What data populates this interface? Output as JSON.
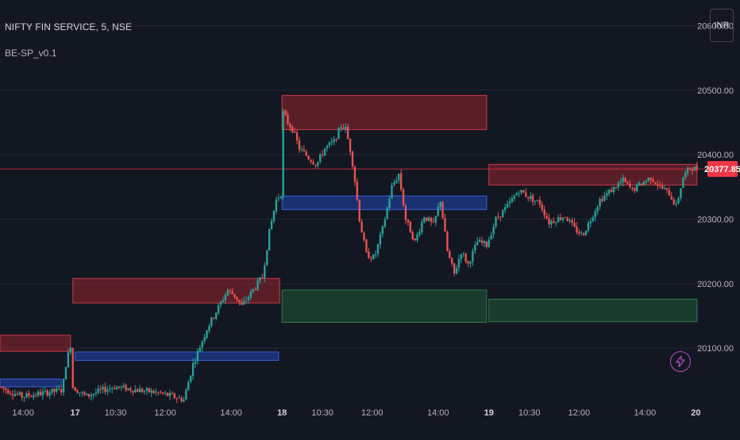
{
  "header": {
    "symbol_title": "NIFTY FIN SERVICE, 5, NSE",
    "indicator_label": "BE-SP_v0.1",
    "currency": "INR"
  },
  "icons": {
    "flash": "lightning-bolt-icon"
  },
  "colors": {
    "background": "#131722",
    "grid": "#222632",
    "up": "#26a69a",
    "down": "#ef5350",
    "last_price_badge": "#f23645",
    "supply_zone": "#b22833",
    "demand_zone": "#1e5a34",
    "pivot_zone": "#2346b0",
    "flash_icon": "#b24cc2"
  },
  "chart_data": {
    "type": "candlestick",
    "title": "NIFTY FIN SERVICE, 5, NSE",
    "y_axis": {
      "ticks": [
        20100.0,
        20200.0,
        20300.0,
        20400.0,
        20500.0,
        20600.0
      ],
      "tick_labels": [
        "20100.00",
        "20200.00",
        "20300.00",
        "20400.00",
        "20500.00",
        "20600.00"
      ],
      "range": [
        20030,
        20640
      ]
    },
    "x_axis": {
      "tick_labels": [
        {
          "label": "14:00",
          "slot": 20
        },
        {
          "label": "17",
          "slot": 65
        },
        {
          "label": "10:30",
          "slot": 100
        },
        {
          "label": "12:00",
          "slot": 143
        },
        {
          "label": "14:00",
          "slot": 200
        },
        {
          "label": "18",
          "slot": 244
        },
        {
          "label": "10:30",
          "slot": 279
        },
        {
          "label": "12:00",
          "slot": 322
        },
        {
          "label": "14:00",
          "slot": 379
        },
        {
          "label": "19",
          "slot": 423
        },
        {
          "label": "10:30",
          "slot": 458
        },
        {
          "label": "12:00",
          "slot": 501
        },
        {
          "label": "14:00",
          "slot": 558
        },
        {
          "label": "20",
          "slot": 602
        }
      ],
      "total_slots": 610
    },
    "last_price": 20377.85,
    "last_price_label": "20377.85",
    "zones": [
      {
        "kind": "supply",
        "top": 20120,
        "bottom": 20095,
        "from_slot": 0,
        "to_slot": 61
      },
      {
        "kind": "pivot",
        "top": 20052,
        "bottom": 20040,
        "from_slot": 0,
        "to_slot": 53
      },
      {
        "kind": "supply",
        "top": 20208,
        "bottom": 20170,
        "from_slot": 63,
        "to_slot": 242
      },
      {
        "kind": "pivot",
        "top": 20094,
        "bottom": 20081,
        "from_slot": 65,
        "to_slot": 241
      },
      {
        "kind": "supply",
        "top": 20492,
        "bottom": 20439,
        "from_slot": 244,
        "to_slot": 421
      },
      {
        "kind": "pivot",
        "top": 20336,
        "bottom": 20315,
        "from_slot": 244,
        "to_slot": 421
      },
      {
        "kind": "demand",
        "top": 20190,
        "bottom": 20140,
        "from_slot": 244,
        "to_slot": 421
      },
      {
        "kind": "supply",
        "top": 20385,
        "bottom": 20353,
        "from_slot": 423,
        "to_slot": 603
      },
      {
        "kind": "demand",
        "top": 20176,
        "bottom": 20141,
        "from_slot": 423,
        "to_slot": 603
      }
    ],
    "path": [
      [
        0,
        20040
      ],
      [
        20,
        20025
      ],
      [
        55,
        20035
      ],
      [
        58,
        20075
      ],
      [
        62,
        20105
      ],
      [
        64,
        20040
      ],
      [
        75,
        20025
      ],
      [
        90,
        20035
      ],
      [
        100,
        20040
      ],
      [
        140,
        20030
      ],
      [
        160,
        20020
      ],
      [
        168,
        20075
      ],
      [
        180,
        20130
      ],
      [
        198,
        20190
      ],
      [
        205,
        20180
      ],
      [
        210,
        20165
      ],
      [
        218,
        20185
      ],
      [
        228,
        20210
      ],
      [
        234,
        20280
      ],
      [
        240,
        20330
      ],
      [
        244,
        20340
      ],
      [
        246,
        20465
      ],
      [
        250,
        20450
      ],
      [
        254,
        20440
      ],
      [
        260,
        20410
      ],
      [
        268,
        20395
      ],
      [
        275,
        20385
      ],
      [
        282,
        20410
      ],
      [
        290,
        20420
      ],
      [
        296,
        20445
      ],
      [
        300,
        20440
      ],
      [
        305,
        20400
      ],
      [
        308,
        20360
      ],
      [
        312,
        20300
      ],
      [
        318,
        20245
      ],
      [
        325,
        20240
      ],
      [
        332,
        20285
      ],
      [
        340,
        20350
      ],
      [
        346,
        20370
      ],
      [
        352,
        20300
      ],
      [
        360,
        20265
      ],
      [
        368,
        20305
      ],
      [
        376,
        20290
      ],
      [
        382,
        20330
      ],
      [
        388,
        20250
      ],
      [
        394,
        20215
      ],
      [
        400,
        20250
      ],
      [
        406,
        20230
      ],
      [
        414,
        20265
      ],
      [
        422,
        20260
      ],
      [
        430,
        20300
      ],
      [
        440,
        20320
      ],
      [
        450,
        20345
      ],
      [
        458,
        20335
      ],
      [
        468,
        20325
      ],
      [
        476,
        20295
      ],
      [
        482,
        20300
      ],
      [
        490,
        20305
      ],
      [
        498,
        20285
      ],
      [
        505,
        20275
      ],
      [
        512,
        20300
      ],
      [
        520,
        20330
      ],
      [
        530,
        20345
      ],
      [
        540,
        20360
      ],
      [
        548,
        20345
      ],
      [
        556,
        20355
      ],
      [
        564,
        20365
      ],
      [
        572,
        20350
      ],
      [
        580,
        20340
      ],
      [
        586,
        20320
      ],
      [
        592,
        20365
      ],
      [
        598,
        20380
      ],
      [
        603,
        20378
      ]
    ]
  }
}
